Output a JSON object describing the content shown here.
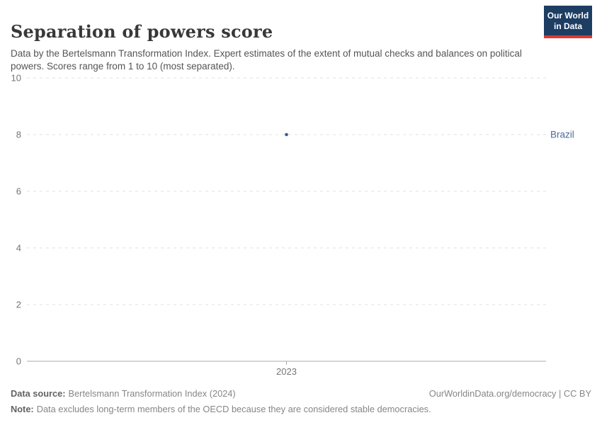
{
  "header": {
    "title": "Separation of powers score",
    "subtitle": "Data by the Bertelsmann Transformation Index. Expert estimates of the extent of mutual checks and balances on political powers. Scores range from 1 to 10 (most separated).",
    "logo": {
      "line1": "Our World",
      "line2": "in Data",
      "bg_color": "#1d3d63",
      "stripe_color": "#dc3b2f",
      "text_color": "#ffffff"
    }
  },
  "chart_data": {
    "type": "scatter",
    "title": "Separation of powers score",
    "x": [
      2023
    ],
    "x_ticks": [
      "2023"
    ],
    "y_ticks": [
      0,
      2,
      4,
      6,
      8,
      10
    ],
    "ylim": [
      0,
      10
    ],
    "xlabel": "",
    "ylabel": "",
    "grid": "horizontal-dashed",
    "legend_position": "right-entity-label",
    "grid_color": "#e0e0e0",
    "axis_color": "#a8a8a8",
    "series": [
      {
        "name": "Brazil",
        "color": "#4c6a9c",
        "point_color": "#3a5c9e",
        "points": [
          {
            "x": 2023,
            "y": 8
          }
        ]
      }
    ]
  },
  "footer": {
    "data_source_label": "Data source:",
    "data_source": "Bertelsmann Transformation Index (2024)",
    "attribution": "OurWorldinData.org/democracy | CC BY",
    "note_label": "Note:",
    "note": "Data excludes long-term members of the OECD because they are considered stable democracies."
  }
}
